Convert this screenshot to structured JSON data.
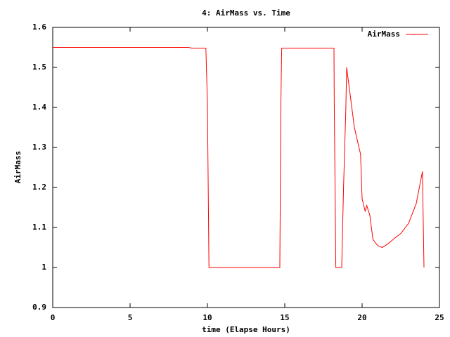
{
  "chart_data": {
    "type": "line",
    "title": "4: AirMass vs. Time",
    "x_label": "time (Elapse Hours)",
    "y_label": "AirMass",
    "x": [
      0,
      8.77,
      9.0,
      9.9,
      10.0,
      10.1,
      14.68,
      14.75,
      14.8,
      18.18,
      18.2,
      18.3,
      18.68,
      18.8,
      18.95,
      19.0,
      19.5,
      19.9,
      20.0,
      20.2,
      20.3,
      20.5,
      20.7,
      21.0,
      21.3,
      21.7,
      22.0,
      22.5,
      23.0,
      23.5,
      23.9,
      24.0
    ],
    "series": [
      {
        "name": "AirMass",
        "color": "#ff0000",
        "values": [
          1.55,
          1.55,
          1.548,
          1.548,
          1.41,
          1.0,
          1.0,
          1.41,
          1.548,
          1.548,
          1.41,
          1.0,
          1.0,
          1.2,
          1.4,
          1.5,
          1.35,
          1.283,
          1.172,
          1.14,
          1.155,
          1.13,
          1.07,
          1.055,
          1.05,
          1.06,
          1.07,
          1.085,
          1.11,
          1.16,
          1.24,
          1.0
        ]
      }
    ],
    "xlim": [
      0,
      25
    ],
    "xticks": [
      0,
      5,
      10,
      15,
      20,
      25
    ],
    "ylim": [
      0.9,
      1.6
    ],
    "yticks": [
      0.9,
      1,
      1.1,
      1.2,
      1.3,
      1.4,
      1.5,
      1.6
    ],
    "grid": false,
    "legend": "top-right"
  }
}
